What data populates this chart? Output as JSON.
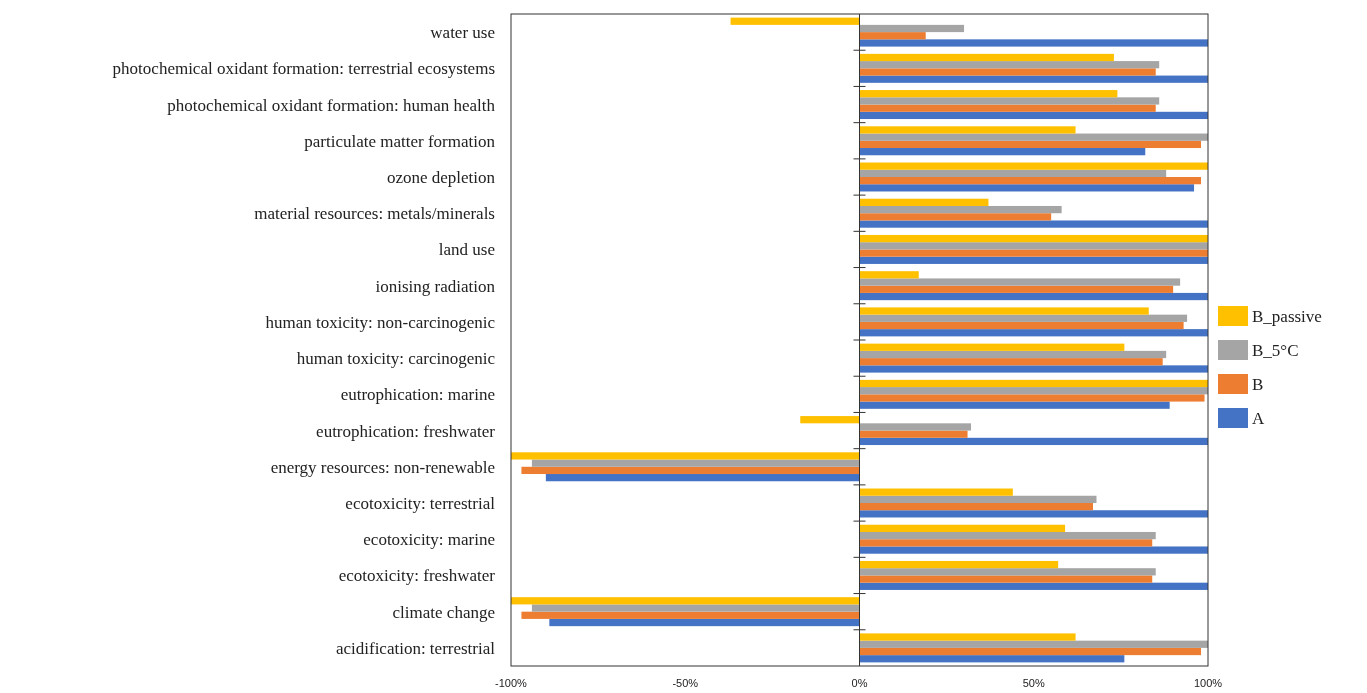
{
  "chart_data": {
    "type": "bar",
    "orientation": "horizontal",
    "categories": [
      "water use",
      "photochemical oxidant formation: terrestrial ecosystems",
      "photochemical oxidant formation: human health",
      "particulate matter formation",
      "ozone depletion",
      "material resources: metals/minerals",
      "land use",
      "ionising radiation",
      "human toxicity: non-carcinogenic",
      "human toxicity: carcinogenic",
      "eutrophication: marine",
      "eutrophication: freshwater",
      "energy resources: non-renewable",
      "ecotoxicity: terrestrial",
      "ecotoxicity: marine",
      "ecotoxicity: freshwater",
      "climate change",
      "acidification: terrestrial"
    ],
    "series": [
      {
        "name": "A",
        "color": "#4472c4",
        "values": [
          100,
          100,
          100,
          82,
          96,
          100,
          100,
          100,
          100,
          100,
          89,
          100,
          -90,
          100,
          100,
          100,
          -89,
          76
        ]
      },
      {
        "name": "B",
        "color": "#ed7d31",
        "values": [
          19,
          85,
          85,
          98,
          98,
          55,
          100,
          90,
          93,
          87,
          99,
          31,
          -97,
          67,
          84,
          84,
          -97,
          98
        ]
      },
      {
        "name": "B_5°C",
        "color": "#a5a5a5",
        "values": [
          30,
          86,
          86,
          100,
          88,
          58,
          100,
          92,
          94,
          88,
          100,
          32,
          -94,
          68,
          85,
          85,
          -94,
          100
        ]
      },
      {
        "name": "B_passive",
        "color": "#ffc000",
        "values": [
          -37,
          73,
          74,
          62,
          100,
          37,
          100,
          17,
          83,
          76,
          100,
          -17,
          -100,
          44,
          59,
          57,
          -100,
          62
        ]
      }
    ],
    "xlim": [
      -100,
      100
    ],
    "xticks": [
      {
        "value": -100,
        "label": "-100%"
      },
      {
        "value": -50,
        "label": "-50%"
      },
      {
        "value": 0,
        "label": "0%"
      },
      {
        "value": 50,
        "label": "50%"
      },
      {
        "value": 100,
        "label": "100%"
      }
    ],
    "legend": "right"
  }
}
